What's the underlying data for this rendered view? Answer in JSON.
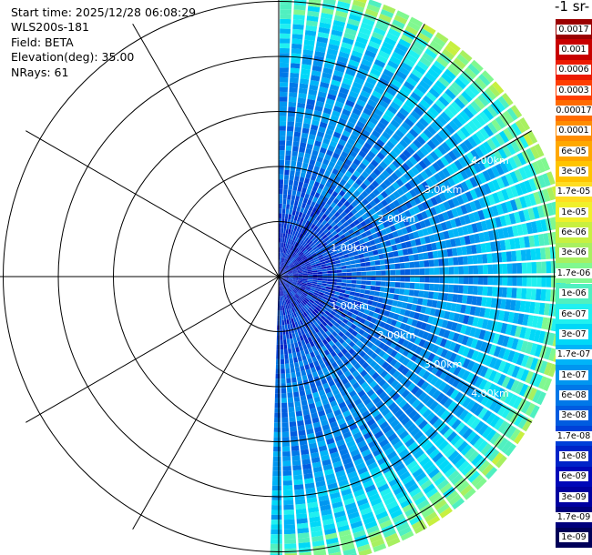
{
  "info": {
    "start_time": "Start time: 2025/12/28 06:08:29",
    "instrument": "WLS200s-181",
    "field": "Field: BETA",
    "elevation": "Elevation(deg): 35.00",
    "nrays": "NRays: 61"
  },
  "colorbar": {
    "title": "-1 sr-",
    "bins": [
      {
        "label": "0.0017",
        "color": "#9b0000"
      },
      {
        "label": "0.001",
        "color": "#c80000"
      },
      {
        "label": "0.0006",
        "color": "#ec1a00"
      },
      {
        "label": "0.0003",
        "color": "#ff3d00"
      },
      {
        "label": "0.00017",
        "color": "#ff6a00"
      },
      {
        "label": "0.0001",
        "color": "#ff8c00"
      },
      {
        "label": "6e-05",
        "color": "#ffa800"
      },
      {
        "label": "3e-05",
        "color": "#ffc400"
      },
      {
        "label": "1.7e-05",
        "color": "#ffdd22"
      },
      {
        "label": "1e-05",
        "color": "#f0f02a"
      },
      {
        "label": "6e-06",
        "color": "#c8f040"
      },
      {
        "label": "3e-06",
        "color": "#a8f060"
      },
      {
        "label": "1.7e-06",
        "color": "#80f890"
      },
      {
        "label": "1e-06",
        "color": "#50f0c0"
      },
      {
        "label": "6e-07",
        "color": "#20f0f0"
      },
      {
        "label": "3e-07",
        "color": "#00d8f8"
      },
      {
        "label": "1.7e-07",
        "color": "#00b4f8"
      },
      {
        "label": "1e-07",
        "color": "#0096f0"
      },
      {
        "label": "6e-08",
        "color": "#0078e8"
      },
      {
        "label": "3e-08",
        "color": "#005ce0"
      },
      {
        "label": "1.7e-08",
        "color": "#0040d8"
      },
      {
        "label": "1e-08",
        "color": "#0024c8"
      },
      {
        "label": "6e-09",
        "color": "#0008b8"
      },
      {
        "label": "3e-09",
        "color": "#0000a0"
      },
      {
        "label": "1.7e-09",
        "color": "#00007c"
      },
      {
        "label": "1e-09",
        "color": "#000058"
      }
    ]
  },
  "chart_data": {
    "type": "heatmap",
    "projection": "polar (PPI scan)",
    "field": "BETA",
    "elevation_deg": 35.0,
    "nrays": 61,
    "max_range_km": 5.3,
    "range_ring_labels": [
      "1.00km",
      "2.00km",
      "3.00km",
      "4.00km"
    ],
    "azimuth_grid_deg": [
      0,
      30,
      60,
      90,
      120,
      150,
      180,
      210,
      240,
      270,
      300,
      330
    ],
    "azimuth_coverage_deg": [
      0,
      182
    ],
    "range_profile": [
      {
        "range_km": 0.5,
        "level": "1e-08"
      },
      {
        "range_km": 2.0,
        "level": "6e-08"
      },
      {
        "range_km": 3.5,
        "level": "1e-07"
      },
      {
        "range_km": 4.5,
        "level": "3e-07"
      },
      {
        "range_km": 5.0,
        "level": "1e-06"
      },
      {
        "range_km": 5.3,
        "level": "3e-06"
      }
    ]
  }
}
